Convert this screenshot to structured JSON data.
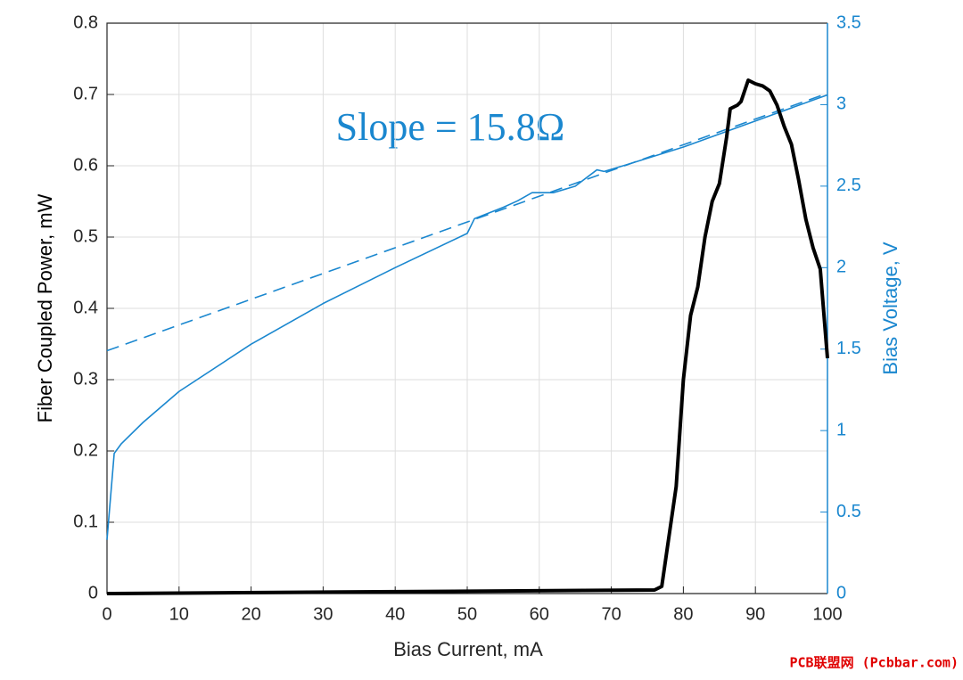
{
  "chart_data": {
    "type": "line",
    "xlabel": "Bias Current, mA",
    "ylabel": "Fiber Coupled Power, mW",
    "y2label": "Bias Voltage, V",
    "annotation": "Slope = 15.8Ω",
    "xlim": [
      0,
      100
    ],
    "xticks": [
      0,
      10,
      20,
      30,
      40,
      50,
      60,
      70,
      80,
      90,
      100
    ],
    "ylim": [
      0,
      0.8
    ],
    "yticks": [
      0,
      0.1,
      0.2,
      0.3,
      0.4,
      0.5,
      0.6,
      0.7,
      0.8
    ],
    "y2lim": [
      0,
      3.5
    ],
    "y2ticks": [
      0,
      0.5,
      1,
      1.5,
      2,
      2.5,
      3,
      3.5
    ],
    "grid": true,
    "y2color": "#1a87cf",
    "series": [
      {
        "color": "#000000",
        "width": 4,
        "dash": false,
        "x": [
          0,
          76,
          77,
          78,
          79,
          80,
          81,
          82,
          83,
          84,
          85,
          86,
          86.5,
          87.5,
          88,
          89,
          90,
          91,
          92,
          93,
          94,
          95,
          96,
          97,
          98,
          99,
          100
        ],
        "values": [
          0,
          0.005,
          0.01,
          0.08,
          0.15,
          0.3,
          0.39,
          0.43,
          0.5,
          0.55,
          0.575,
          0.64,
          0.68,
          0.685,
          0.69,
          0.72,
          0.715,
          0.712,
          0.705,
          0.685,
          0.655,
          0.63,
          0.58,
          0.525,
          0.485,
          0.455,
          0.33
        ]
      },
      {
        "color": "#1a87cf",
        "width": 1.6,
        "dash": false,
        "axis": "y2",
        "x": [
          0,
          1,
          2,
          5,
          10,
          20,
          30,
          40,
          50,
          51,
          55,
          57,
          59,
          62,
          65,
          68,
          69,
          72,
          80,
          90,
          100
        ],
        "values": [
          0.33,
          0.86,
          0.92,
          1.05,
          1.24,
          1.53,
          1.78,
          2.0,
          2.21,
          2.3,
          2.37,
          2.41,
          2.46,
          2.46,
          2.5,
          2.6,
          2.59,
          2.63,
          2.74,
          2.9,
          3.06
        ]
      },
      {
        "color": "#1a87cf",
        "width": 1.6,
        "dash": true,
        "axis": "y2",
        "x": [
          0,
          100
        ],
        "values": [
          1.49,
          3.07
        ]
      }
    ]
  },
  "watermark": "PCB联盟网 (Pcbbar.com)"
}
